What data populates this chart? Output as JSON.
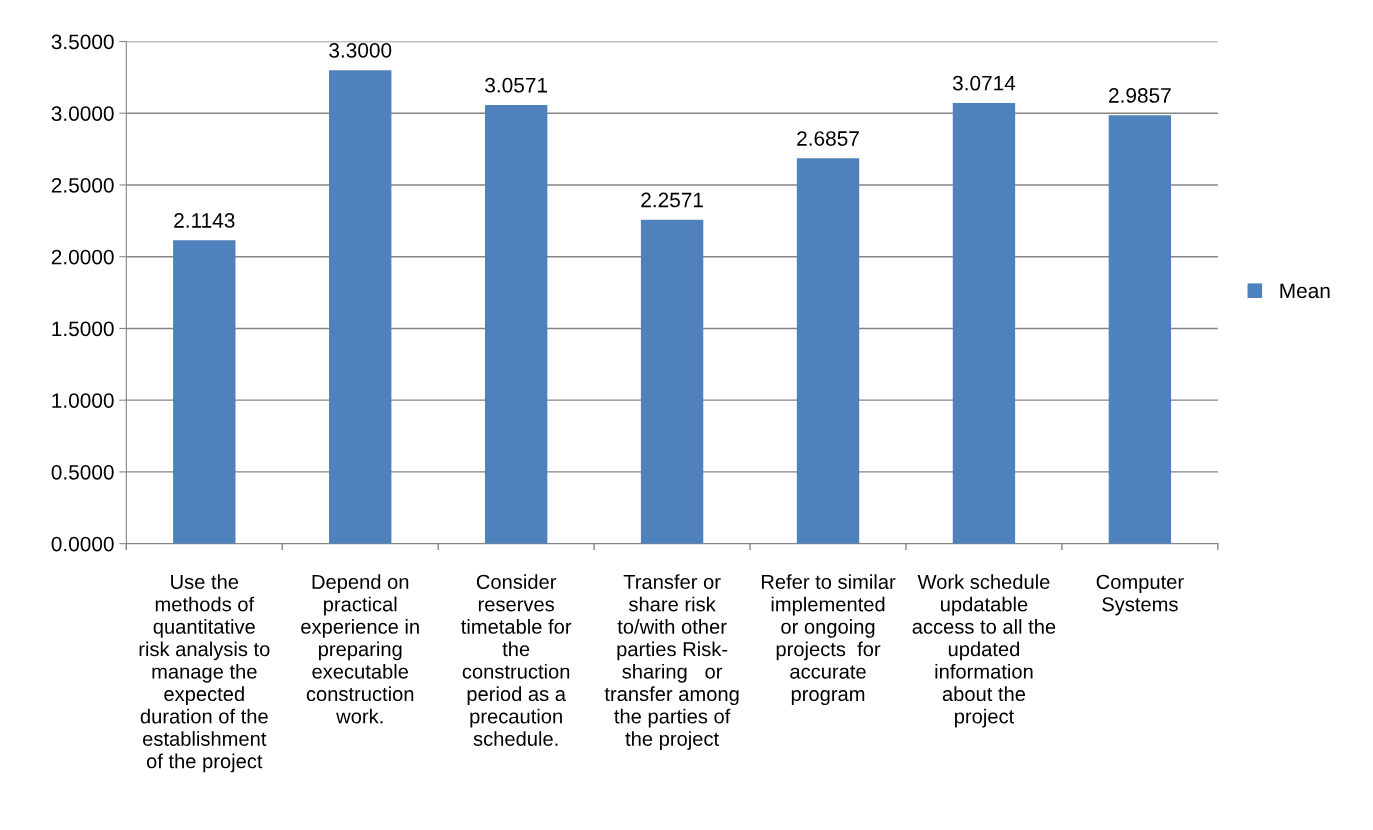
{
  "chart_data": {
    "type": "bar",
    "categories": [
      "Use the\nmethods of\nquantitative\nrisk analysis to\nmanage the\nexpected\nduration of the\nestablishment\nof the project",
      "Depend on\npractical\nexperience in\npreparing\nexecutable\nconstruction\nwork.",
      "Consider\nreserves\ntimetable for\nthe\nconstruction\nperiod as a\nprecaution\nschedule.",
      "Transfer or\nshare risk\nto/with other\nparties Risk-\nsharing   or\ntransfer among\nthe parties of\nthe project",
      "Refer to similar\nimplemented\nor ongoing\nprojects  for\naccurate\nprogram",
      "Work schedule\nupdatable\naccess to all the\nupdated\ninformation\nabout the\nproject",
      "Computer\nSystems"
    ],
    "series": [
      {
        "name": "Mean",
        "color": "#4f81bd",
        "values": [
          2.1143,
          3.3,
          3.0571,
          2.2571,
          2.6857,
          3.0714,
          2.9857
        ],
        "value_labels": [
          "2.1143",
          "3.3000",
          "3.0571",
          "2.2571",
          "2.6857",
          "3.0714",
          "2.9857"
        ]
      }
    ],
    "ylim": [
      0,
      3.5
    ],
    "yticks": [
      {
        "value": 0,
        "label": "0.0000"
      },
      {
        "value": 0.5,
        "label": "0.5000"
      },
      {
        "value": 1,
        "label": "1.0000"
      },
      {
        "value": 1.5,
        "label": "1.5000"
      },
      {
        "value": 2,
        "label": "2.0000"
      },
      {
        "value": 2.5,
        "label": "2.5000"
      },
      {
        "value": 3,
        "label": "3.0000"
      },
      {
        "value": 3.5,
        "label": "3.5000"
      }
    ],
    "grid": "y",
    "legend": "right"
  }
}
